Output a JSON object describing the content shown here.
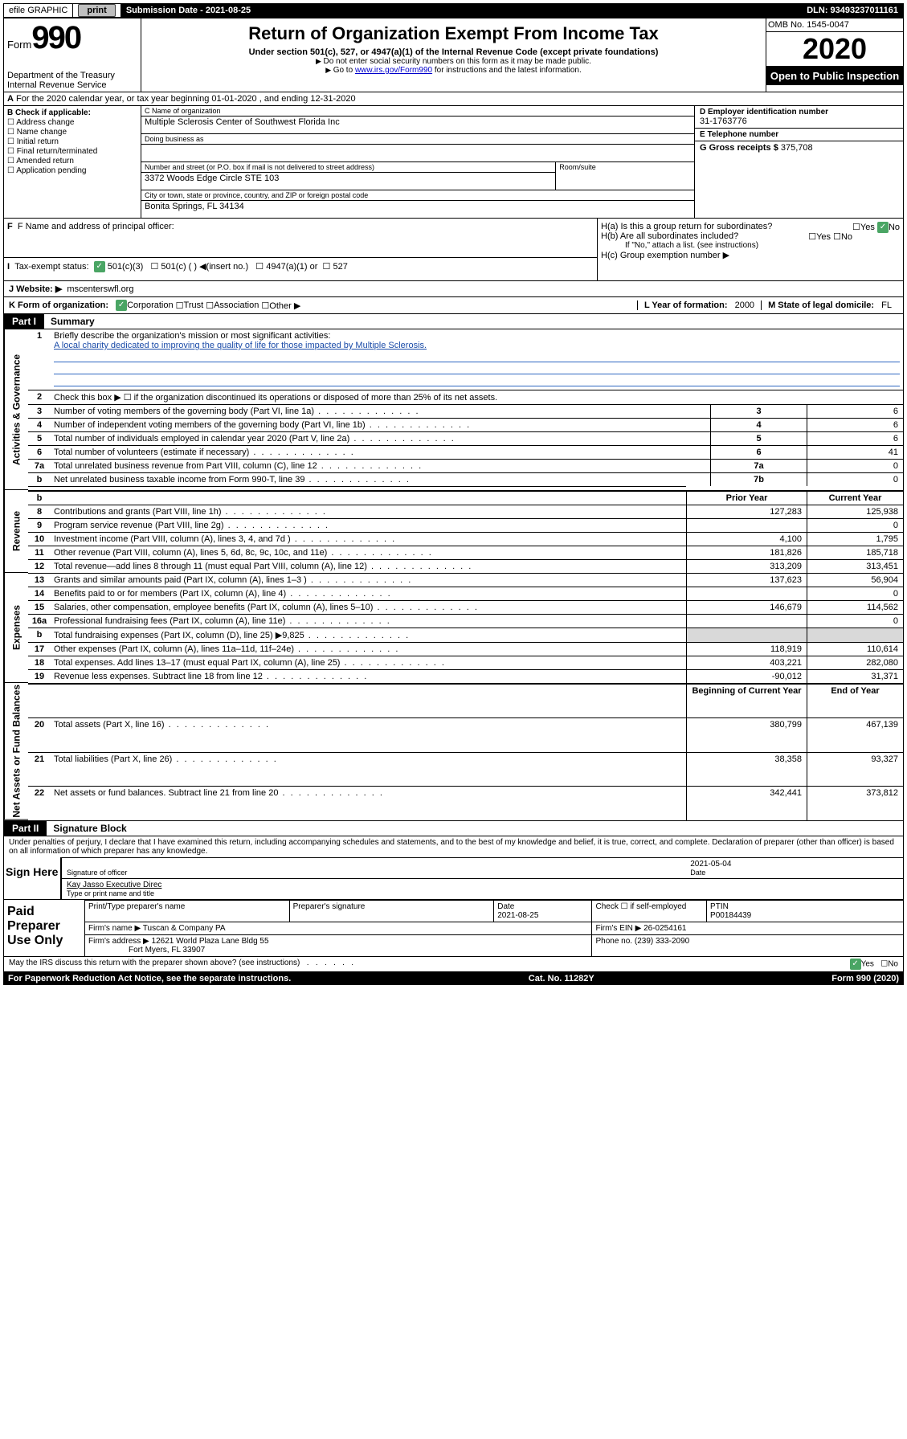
{
  "top": {
    "efile_label": "efile GRAPHIC",
    "print_btn": "print",
    "submission_label": "Submission Date - 2021-08-25",
    "dln_label": "DLN: 93493237011161"
  },
  "header": {
    "form_word": "Form",
    "form_number": "990",
    "dept1": "Department of the Treasury",
    "dept2": "Internal Revenue Service",
    "title": "Return of Organization Exempt From Income Tax",
    "line1": "Under section 501(c), 527, or 4947(a)(1) of the Internal Revenue Code (except private foundations)",
    "line2": "Do not enter social security numbers on this form as it may be made public.",
    "line3a": "Go to ",
    "line3_link": "www.irs.gov/Form990",
    "line3b": " for instructions and the latest information.",
    "omb": "OMB No. 1545-0047",
    "year": "2020",
    "open": "Open to Public Inspection"
  },
  "A": {
    "text": "For the 2020 calendar year, or tax year beginning 01-01-2020    , and ending 12-31-2020"
  },
  "B": {
    "title": "B Check if applicable:",
    "items": [
      "Address change",
      "Name change",
      "Initial return",
      "Final return/terminated",
      "Amended return",
      "Application pending"
    ]
  },
  "C": {
    "name_label": "C Name of organization",
    "name_val": "Multiple Sclerosis Center of Southwest Florida Inc",
    "dba_label": "Doing business as",
    "dba_val": "",
    "addr_label": "Number and street (or P.O. box if mail is not delivered to street address)",
    "room_label": "Room/suite",
    "addr_val": "3372 Woods Edge Circle STE 103",
    "city_label": "City or town, state or province, country, and ZIP or foreign postal code",
    "city_val": "Bonita Springs, FL  34134"
  },
  "right": {
    "D_label": "D Employer identification number",
    "D_val": "31-1763776",
    "E_label": "E Telephone number",
    "E_val": "",
    "G_label": "G Gross receipts $",
    "G_val": "375,708"
  },
  "F": {
    "label": "F  Name and address of principal officer:",
    "val": ""
  },
  "H": {
    "a": "H(a)  Is this a group return for subordinates?",
    "b": "H(b)  Are all subordinates included?",
    "note": "If \"No,\" attach a list. (see instructions)",
    "c": "H(c)  Group exemption number ▶",
    "yes": "Yes",
    "no": "No"
  },
  "I": {
    "label": "Tax-exempt status:",
    "opt1": "501(c)(3)",
    "opt2": "501(c) (  ) ◀(insert no.)",
    "opt3": "4947(a)(1) or",
    "opt4": "527"
  },
  "J": {
    "label": "J   Website: ▶",
    "val": "mscenterswfl.org"
  },
  "K": {
    "label": "K Form of organization:",
    "opts": [
      "Corporation",
      "Trust",
      "Association",
      "Other ▶"
    ],
    "L_label": "L Year of formation:",
    "L_val": "2000",
    "M_label": "M State of legal domicile:",
    "M_val": "FL"
  },
  "part1": {
    "label": "Part I",
    "title": "Summary"
  },
  "summary": {
    "side1": "Activities & Governance",
    "side2": "Revenue",
    "side3": "Expenses",
    "side4": "Net Assets or Fund Balances",
    "q1": "Briefly describe the organization's mission or most significant activities:",
    "mission": "A local charity dedicated to improving the quality of life for those impacted by Multiple Sclerosis.",
    "q2": "Check this box ▶ ☐  if the organization discontinued its operations or disposed of more than 25% of its net assets.",
    "rows_gov": [
      {
        "n": "3",
        "d": "Number of voting members of the governing body (Part VI, line 1a)",
        "b": "3",
        "v": "6"
      },
      {
        "n": "4",
        "d": "Number of independent voting members of the governing body (Part VI, line 1b)",
        "b": "4",
        "v": "6"
      },
      {
        "n": "5",
        "d": "Total number of individuals employed in calendar year 2020 (Part V, line 2a)",
        "b": "5",
        "v": "6"
      },
      {
        "n": "6",
        "d": "Total number of volunteers (estimate if necessary)",
        "b": "6",
        "v": "41"
      },
      {
        "n": "7a",
        "d": "Total unrelated business revenue from Part VIII, column (C), line 12",
        "b": "7a",
        "v": "0"
      },
      {
        "n": "b",
        "d": "Net unrelated business taxable income from Form 990-T, line 39",
        "b": "7b",
        "v": "0"
      }
    ],
    "hdr_prior": "Prior Year",
    "hdr_curr": "Current Year",
    "rows_rev": [
      {
        "n": "8",
        "d": "Contributions and grants (Part VIII, line 1h)",
        "p": "127,283",
        "c": "125,938"
      },
      {
        "n": "9",
        "d": "Program service revenue (Part VIII, line 2g)",
        "p": "",
        "c": "0"
      },
      {
        "n": "10",
        "d": "Investment income (Part VIII, column (A), lines 3, 4, and 7d )",
        "p": "4,100",
        "c": "1,795"
      },
      {
        "n": "11",
        "d": "Other revenue (Part VIII, column (A), lines 5, 6d, 8c, 9c, 10c, and 11e)",
        "p": "181,826",
        "c": "185,718"
      },
      {
        "n": "12",
        "d": "Total revenue—add lines 8 through 11 (must equal Part VIII, column (A), line 12)",
        "p": "313,209",
        "c": "313,451"
      }
    ],
    "rows_exp": [
      {
        "n": "13",
        "d": "Grants and similar amounts paid (Part IX, column (A), lines 1–3 )",
        "p": "137,623",
        "c": "56,904"
      },
      {
        "n": "14",
        "d": "Benefits paid to or for members (Part IX, column (A), line 4)",
        "p": "",
        "c": "0"
      },
      {
        "n": "15",
        "d": "Salaries, other compensation, employee benefits (Part IX, column (A), lines 5–10)",
        "p": "146,679",
        "c": "114,562"
      },
      {
        "n": "16a",
        "d": "Professional fundraising fees (Part IX, column (A), line 11e)",
        "p": "",
        "c": "0"
      },
      {
        "n": "b",
        "d": "Total fundraising expenses (Part IX, column (D), line 25) ▶9,825",
        "p": "shade",
        "c": "shade"
      },
      {
        "n": "17",
        "d": "Other expenses (Part IX, column (A), lines 11a–11d, 11f–24e)",
        "p": "118,919",
        "c": "110,614"
      },
      {
        "n": "18",
        "d": "Total expenses. Add lines 13–17 (must equal Part IX, column (A), line 25)",
        "p": "403,221",
        "c": "282,080"
      },
      {
        "n": "19",
        "d": "Revenue less expenses. Subtract line 18 from line 12",
        "p": "-90,012",
        "c": "31,371"
      }
    ],
    "hdr_bcy": "Beginning of Current Year",
    "hdr_eoy": "End of Year",
    "rows_net": [
      {
        "n": "20",
        "d": "Total assets (Part X, line 16)",
        "p": "380,799",
        "c": "467,139"
      },
      {
        "n": "21",
        "d": "Total liabilities (Part X, line 26)",
        "p": "38,358",
        "c": "93,327"
      },
      {
        "n": "22",
        "d": "Net assets or fund balances. Subtract line 21 from line 20",
        "p": "342,441",
        "c": "373,812"
      }
    ]
  },
  "part2": {
    "label": "Part II",
    "title": "Signature Block"
  },
  "sig": {
    "text": "Under penalties of perjury, I declare that I have examined this return, including accompanying schedules and statements, and to the best of my knowledge and belief, it is true, correct, and complete. Declaration of preparer (other than officer) is based on all information of which preparer has any knowledge.",
    "sign_here": "Sign Here",
    "sig_line": "Signature of officer",
    "date": "2021-05-04",
    "date_lbl": "Date",
    "name": "Kay Jasso  Executive Direc",
    "name_lbl": "Type or print name and title"
  },
  "prep": {
    "label": "Paid Preparer Use Only",
    "h1": "Print/Type preparer's name",
    "h2": "Preparer's signature",
    "h3_lbl": "Date",
    "h3": "2021-08-25",
    "h4": "Check ☐ if self-employed",
    "h5_lbl": "PTIN",
    "h5": "P00184439",
    "firm_lbl": "Firm's name    ▶",
    "firm": "Tuscan & Company PA",
    "ein_lbl": "Firm's EIN ▶",
    "ein": "26-0254161",
    "addr_lbl": "Firm's address ▶",
    "addr1": "12621 World Plaza Lane Bldg 55",
    "addr2": "Fort Myers, FL  33907",
    "phone_lbl": "Phone no.",
    "phone": "(239) 333-2090"
  },
  "footer": {
    "q": "May the IRS discuss this return with the preparer shown above? (see instructions)",
    "yes": "Yes",
    "no": "No",
    "pra": "For Paperwork Reduction Act Notice, see the separate instructions.",
    "cat": "Cat. No. 11282Y",
    "form": "Form 990 (2020)"
  }
}
